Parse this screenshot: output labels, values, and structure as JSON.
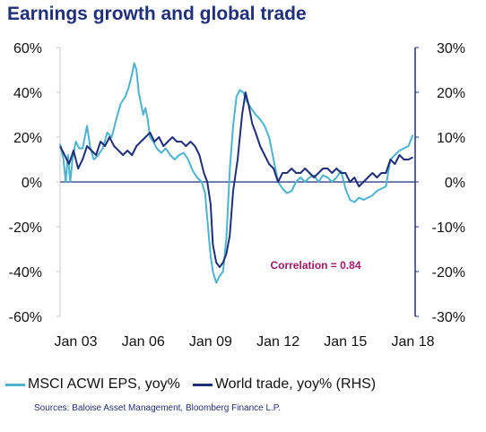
{
  "title": "Earnings growth and global trade",
  "source": "Sources: Baloise Asset Management, Bloomberg Finance L.P.",
  "colors": {
    "msci": "#4db3cf",
    "trade": "#1f2f7a",
    "annotation": "#a0176b",
    "axis": "#1f2f7a"
  },
  "chart_data": {
    "type": "line",
    "title": "Earnings growth and global trade",
    "x_tick_labels": [
      "Jan 03",
      "Jan 06",
      "Jan 09",
      "Jan 12",
      "Jan 15",
      "Jan 18"
    ],
    "x_tick_years": [
      2003,
      2006,
      2009,
      2012,
      2015,
      2018
    ],
    "xlim": [
      2002.3,
      2018.1
    ],
    "y_left": {
      "ylim": [
        -60,
        60
      ],
      "ticks": [
        -60,
        -40,
        -20,
        0,
        20,
        40,
        60
      ],
      "tick_labels": [
        "-60%",
        "-40%",
        "-20%",
        "0%",
        "20%",
        "40%",
        "60%"
      ]
    },
    "y_right": {
      "ylim": [
        -30,
        30
      ],
      "ticks": [
        -30,
        -20,
        -10,
        0,
        10,
        20,
        30
      ],
      "tick_labels": [
        "-30%",
        "-20%",
        "-10%",
        "0%",
        "10%",
        "20%",
        "30%"
      ]
    },
    "annotation": "Correlation = 0.84",
    "legend_position": "bottom",
    "series": [
      {
        "name": "MSCI ACWI EPS, yoy%",
        "axis": "left",
        "color": "#4db3cf",
        "x": [
          2002.3,
          2002.45,
          2002.55,
          2002.65,
          2002.75,
          2002.85,
          2003.0,
          2003.15,
          2003.3,
          2003.5,
          2003.65,
          2003.8,
          2004.0,
          2004.2,
          2004.4,
          2004.6,
          2004.8,
          2005.0,
          2005.2,
          2005.35,
          2005.5,
          2005.6,
          2005.7,
          2005.8,
          2005.9,
          2006.0,
          2006.1,
          2006.2,
          2006.3,
          2006.45,
          2006.6,
          2006.8,
          2007.0,
          2007.2,
          2007.4,
          2007.6,
          2007.8,
          2008.0,
          2008.2,
          2008.4,
          2008.6,
          2008.75,
          2008.9,
          2009.0,
          2009.1,
          2009.25,
          2009.4,
          2009.55,
          2009.7,
          2009.85,
          2010.0,
          2010.15,
          2010.3,
          2010.45,
          2010.6,
          2010.8,
          2011.0,
          2011.2,
          2011.4,
          2011.6,
          2011.8,
          2012.0,
          2012.2,
          2012.4,
          2012.6,
          2012.8,
          2013.0,
          2013.2,
          2013.4,
          2013.6,
          2013.8,
          2014.0,
          2014.2,
          2014.4,
          2014.6,
          2014.8,
          2015.0,
          2015.2,
          2015.4,
          2015.6,
          2015.8,
          2016.0,
          2016.2,
          2016.4,
          2016.6,
          2016.8,
          2017.0,
          2017.2,
          2017.4,
          2017.6,
          2017.8,
          2018.0
        ],
        "values": [
          17,
          10,
          0,
          12,
          0,
          10,
          18,
          15,
          15,
          25,
          15,
          10,
          12,
          15,
          22,
          20,
          28,
          35,
          38,
          42,
          48,
          53,
          50,
          40,
          35,
          30,
          33,
          28,
          20,
          18,
          15,
          13,
          15,
          12,
          10,
          12,
          13,
          10,
          5,
          2,
          0,
          -5,
          -22,
          -33,
          -40,
          -45,
          -42,
          -40,
          -25,
          5,
          25,
          38,
          41,
          40,
          36,
          33,
          30,
          28,
          25,
          20,
          10,
          0,
          -3,
          -5,
          -4,
          0,
          2,
          0,
          2,
          3,
          0,
          3,
          2,
          0,
          2,
          5,
          -3,
          -8,
          -9,
          -7,
          -8,
          -7,
          -6,
          -4,
          -3,
          -2,
          10,
          12,
          14,
          15,
          16,
          21
        ]
      },
      {
        "name": "World trade, yoy% (RHS)",
        "axis": "right",
        "color": "#1f2f7a",
        "x": [
          2002.3,
          2002.5,
          2002.7,
          2002.9,
          2003.1,
          2003.3,
          2003.5,
          2003.7,
          2003.9,
          2004.1,
          2004.3,
          2004.5,
          2004.7,
          2004.9,
          2005.1,
          2005.3,
          2005.5,
          2005.7,
          2005.9,
          2006.1,
          2006.3,
          2006.5,
          2006.7,
          2006.9,
          2007.1,
          2007.3,
          2007.5,
          2007.7,
          2007.9,
          2008.1,
          2008.3,
          2008.5,
          2008.7,
          2008.85,
          2009.0,
          2009.1,
          2009.25,
          2009.4,
          2009.55,
          2009.7,
          2009.85,
          2010.0,
          2010.2,
          2010.4,
          2010.55,
          2010.7,
          2010.85,
          2011.0,
          2011.2,
          2011.4,
          2011.6,
          2011.8,
          2012.0,
          2012.2,
          2012.4,
          2012.6,
          2012.8,
          2013.0,
          2013.2,
          2013.4,
          2013.6,
          2013.8,
          2014.0,
          2014.2,
          2014.4,
          2014.6,
          2014.8,
          2015.0,
          2015.2,
          2015.4,
          2015.6,
          2015.8,
          2016.0,
          2016.2,
          2016.4,
          2016.6,
          2016.8,
          2017.0,
          2017.2,
          2017.4,
          2017.6,
          2017.8,
          2018.0
        ],
        "values": [
          8,
          6,
          4,
          7,
          3,
          5,
          8,
          7,
          6,
          9,
          8,
          10,
          8,
          7,
          6,
          7,
          6,
          8,
          9,
          10,
          11,
          9,
          10,
          8,
          9,
          10,
          9,
          9,
          8,
          9,
          8,
          6,
          2,
          0,
          -5,
          -14,
          -18,
          -19,
          -18,
          -16,
          -12,
          -2,
          5,
          15,
          20,
          17,
          13,
          11,
          8,
          6,
          4,
          3,
          0,
          2,
          2,
          3,
          2,
          2,
          3,
          2,
          1,
          2,
          3,
          3,
          2,
          3,
          2,
          2,
          0,
          1,
          -1,
          0,
          1,
          2,
          1,
          2,
          2,
          5,
          4,
          6,
          5,
          5,
          5.5
        ]
      }
    ]
  }
}
